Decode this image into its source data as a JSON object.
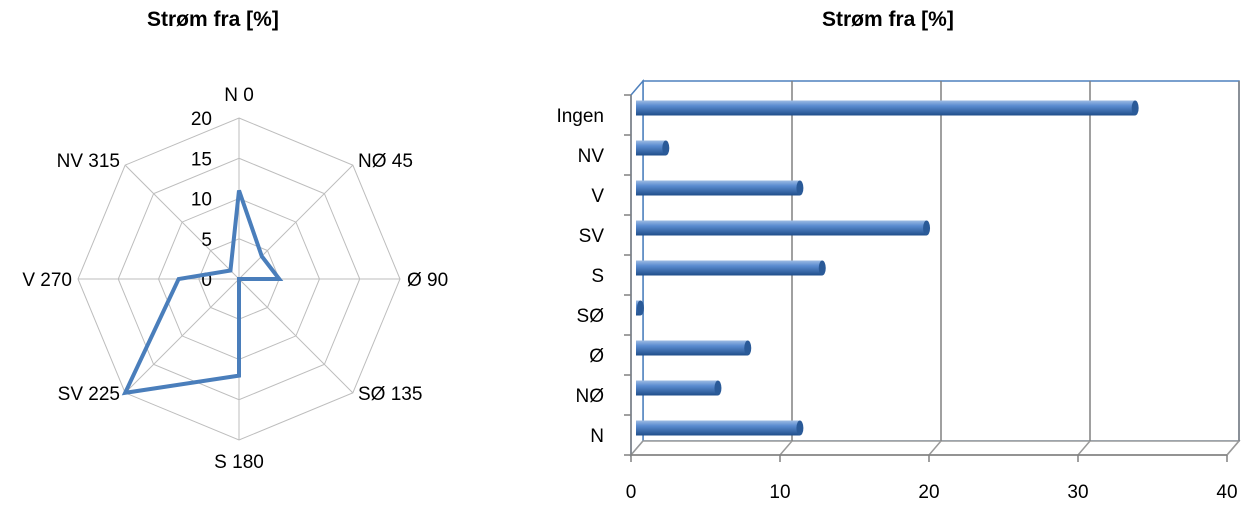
{
  "chart_data": [
    {
      "type": "radar",
      "title": "Strøm fra [%]",
      "categories": [
        "N 0",
        "NØ 45",
        "Ø 90",
        "SØ 135",
        "S 180",
        "SV 225",
        "V 270",
        "NV 315"
      ],
      "values": [
        11,
        4,
        5,
        0,
        12,
        20,
        7.5,
        1.5
      ],
      "rlim": [
        0,
        20
      ],
      "rticks": [
        "0",
        "5",
        "10",
        "15",
        "20"
      ],
      "series_color": "#4a7ebb",
      "grid": true
    },
    {
      "type": "bar",
      "orientation": "horizontal",
      "style": "3d-cylinder",
      "title": "Strøm fra [%]",
      "categories": [
        "N",
        "NØ",
        "Ø",
        "SØ",
        "S",
        "SV",
        "V",
        "NV",
        "Ingen"
      ],
      "values": [
        11,
        5.5,
        7.5,
        0.3,
        12.5,
        19.5,
        11,
        2,
        33.5
      ],
      "xlim": [
        0,
        40
      ],
      "xticks": [
        "0",
        "10",
        "20",
        "30",
        "40"
      ],
      "series_color": "#4f81bd",
      "grid": true
    }
  ]
}
